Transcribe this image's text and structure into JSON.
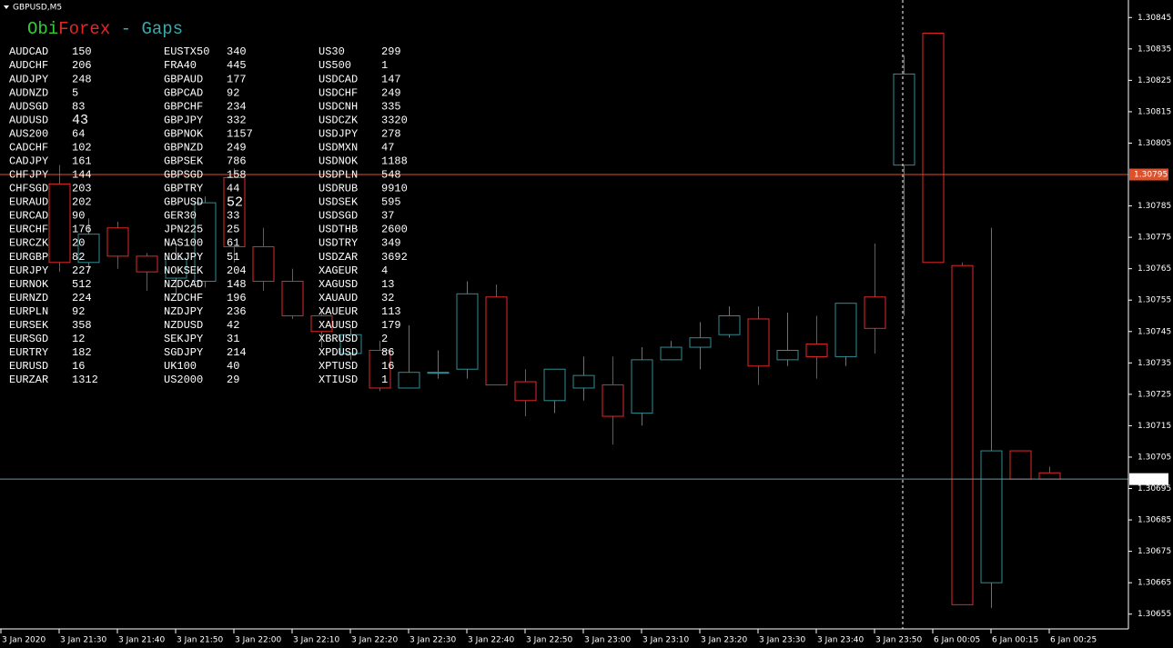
{
  "chart_data": {
    "type": "candlestick",
    "title": "GBPUSD,M5",
    "categories": [
      "3 Jan 2020",
      null,
      "3 Jan 21:30",
      null,
      "3 Jan 21:40",
      null,
      "3 Jan 21:50",
      null,
      "3 Jan 22:00",
      null,
      "3 Jan 22:10",
      null,
      "3 Jan 22:20",
      null,
      "3 Jan 22:30",
      null,
      "3 Jan 22:40",
      null,
      "3 Jan 22:50",
      null,
      "3 Jan 23:00",
      null,
      "3 Jan 23:10",
      null,
      "3 Jan 23:20",
      null,
      "3 Jan 23:30",
      null,
      "3 Jan 23:40",
      null,
      "3 Jan 23:50",
      null,
      "6 Jan 00:05",
      null,
      "6 Jan 00:15",
      null,
      "6 Jan 00:25"
    ],
    "open": [
      null,
      null,
      1.30792,
      1.30767,
      1.30778,
      1.30769,
      1.30762,
      1.30761,
      1.30794,
      1.30772,
      1.30761,
      1.3075,
      1.30738,
      1.30739,
      1.30727,
      1.30732,
      1.30733,
      1.30756,
      1.30729,
      1.30723,
      1.30727,
      1.30728,
      1.30719,
      1.30736,
      1.3074,
      1.30744,
      1.30749,
      1.30736,
      1.30741,
      1.30737,
      1.30756,
      1.30798,
      1.3084,
      1.30766,
      1.30665,
      1.30707,
      1.307
    ],
    "high": [
      null,
      null,
      1.30798,
      1.30781,
      1.3078,
      1.3077,
      1.30772,
      1.30788,
      1.30797,
      1.30778,
      1.30765,
      1.30752,
      1.30746,
      1.30742,
      1.30747,
      1.30739,
      1.30761,
      1.3076,
      1.30733,
      1.30733,
      1.30737,
      1.30737,
      1.3074,
      1.30742,
      1.30748,
      1.30753,
      1.30753,
      1.30751,
      1.3075,
      1.30754,
      1.30773,
      1.30833,
      1.3084,
      1.30767,
      1.30778,
      1.30707,
      1.30702
    ],
    "low": [
      null,
      null,
      1.30764,
      1.30764,
      1.30765,
      1.30758,
      1.30757,
      1.30759,
      1.30767,
      1.30758,
      1.30749,
      1.3074,
      1.30736,
      1.30726,
      1.30727,
      1.3073,
      1.3073,
      1.30728,
      1.30718,
      1.30719,
      1.30723,
      1.30709,
      1.30715,
      1.30736,
      1.30733,
      1.30743,
      1.30728,
      1.30734,
      1.3073,
      1.30734,
      1.30738,
      1.3075,
      1.30767,
      1.30658,
      1.30657,
      1.30698,
      1.30698
    ],
    "close": [
      null,
      null,
      1.30767,
      1.30776,
      1.30769,
      1.30764,
      1.30768,
      1.30786,
      1.30772,
      1.30761,
      1.3075,
      1.30745,
      1.30744,
      1.30727,
      1.30732,
      1.30732,
      1.30757,
      1.30728,
      1.30723,
      1.30733,
      1.30731,
      1.30718,
      1.30736,
      1.3074,
      1.30743,
      1.3075,
      1.30734,
      1.30739,
      1.30737,
      1.30754,
      1.30746,
      1.30827,
      1.30767,
      1.30658,
      1.30707,
      1.30698,
      1.30698
    ],
    "up_color": "#2f8c94",
    "down_color": "#e02828",
    "ylim": [
      1.3065,
      1.3085
    ],
    "yticks": [
      1.30845,
      1.30835,
      1.30825,
      1.30815,
      1.30805,
      1.30785,
      1.30775,
      1.30765,
      1.30755,
      1.30745,
      1.30735,
      1.30725,
      1.30715,
      1.30705,
      1.30695,
      1.30685,
      1.30675,
      1.30665,
      1.30655
    ],
    "price_lines": [
      {
        "value": 1.30795,
        "color": "#e0502a",
        "label_bg": "#e0502a"
      },
      {
        "value": 1.30698,
        "color": "#6d95a0",
        "label_bg": "#ffffff"
      }
    ]
  },
  "overlay": {
    "title_parts": [
      {
        "text": "Obi",
        "color": "#32cd32"
      },
      {
        "text": "Forex",
        "color": "#e02828"
      },
      {
        "text": " - Gaps",
        "color": "#3aa9a9"
      }
    ],
    "columns": [
      [
        {
          "symbol": "AUDCAD",
          "gap": "150",
          "color": "#e02828"
        },
        {
          "symbol": "AUDCHF",
          "gap": "206",
          "color": "#e02828"
        },
        {
          "symbol": "AUDJPY",
          "gap": "248",
          "color": "#e02828"
        },
        {
          "symbol": "AUDNZD",
          "gap": "5",
          "color": "#e02828"
        },
        {
          "symbol": "AUDSGD",
          "gap": "83",
          "color": "#e02828"
        },
        {
          "symbol": "AUDUSD",
          "gap": "43",
          "color": "#ffffff",
          "large": true
        },
        {
          "symbol": "AUS200",
          "gap": "64",
          "color": "#2e8b2e"
        },
        {
          "symbol": "CADCHF",
          "gap": "102",
          "color": "#e02828"
        },
        {
          "symbol": "CADJPY",
          "gap": "161",
          "color": "#e02828"
        },
        {
          "symbol": "CHFJPY",
          "gap": "144",
          "color": "#e02828"
        },
        {
          "symbol": "CHFSGD",
          "gap": "203",
          "color": "#2e8b2e"
        },
        {
          "symbol": "EURAUD",
          "gap": "202",
          "color": "#2e8b2e"
        },
        {
          "symbol": "EURCAD",
          "gap": "90",
          "color": "#e02828"
        },
        {
          "symbol": "EURCHF",
          "gap": "176",
          "color": "#e02828"
        },
        {
          "symbol": "EURCZK",
          "gap": "20",
          "color": "#2e8b2e"
        },
        {
          "symbol": "EURGBP",
          "gap": "82",
          "color": "#e02828"
        },
        {
          "symbol": "EURJPY",
          "gap": "227",
          "color": "#e02828"
        },
        {
          "symbol": "EURNOK",
          "gap": "512",
          "color": "#e02828"
        },
        {
          "symbol": "EURNZD",
          "gap": "224",
          "color": "#2e8b2e"
        },
        {
          "symbol": "EURPLN",
          "gap": "92",
          "color": "#e02828"
        },
        {
          "symbol": "EURSEK",
          "gap": "358",
          "color": "#2e8b2e"
        },
        {
          "symbol": "EURSGD",
          "gap": "12",
          "color": "#2e8b2e"
        },
        {
          "symbol": "EURTRY",
          "gap": "182",
          "color": "#e02828"
        },
        {
          "symbol": "EURUSD",
          "gap": "16",
          "color": "#2e8b2e"
        },
        {
          "symbol": "EURZAR",
          "gap": "1312",
          "color": "#e02828"
        }
      ],
      [
        {
          "symbol": "EUSTX50",
          "gap": "340",
          "color": "#e02828"
        },
        {
          "symbol": "FRA40",
          "gap": "445",
          "color": "#e02828"
        },
        {
          "symbol": "GBPAUD",
          "gap": "177",
          "color": "#2e8b2e"
        },
        {
          "symbol": "GBPCAD",
          "gap": "92",
          "color": "#e02828"
        },
        {
          "symbol": "GBPCHF",
          "gap": "234",
          "color": "#e02828"
        },
        {
          "symbol": "GBPJPY",
          "gap": "332",
          "color": "#e02828"
        },
        {
          "symbol": "GBPNOK",
          "gap": "1157",
          "color": "#e02828"
        },
        {
          "symbol": "GBPNZD",
          "gap": "249",
          "color": "#2e8b2e"
        },
        {
          "symbol": "GBPSEK",
          "gap": "786",
          "color": "#e02828"
        },
        {
          "symbol": "GBPSGD",
          "gap": "158",
          "color": "#2e8b2e"
        },
        {
          "symbol": "GBPTRY",
          "gap": "44",
          "color": "#e02828"
        },
        {
          "symbol": "GBPUSD",
          "gap": "52",
          "color": "#32cd32",
          "large": true
        },
        {
          "symbol": "GER30",
          "gap": "33",
          "color": "#2e8b2e"
        },
        {
          "symbol": "JPN225",
          "gap": "25",
          "color": "#e02828"
        },
        {
          "symbol": "NAS100",
          "gap": "61",
          "color": "#e02828"
        },
        {
          "symbol": "NOKJPY",
          "gap": "51",
          "color": "#e02828"
        },
        {
          "symbol": "NOKSEK",
          "gap": "204",
          "color": "#e02828"
        },
        {
          "symbol": "NZDCAD",
          "gap": "148",
          "color": "#e02828"
        },
        {
          "symbol": "NZDCHF",
          "gap": "196",
          "color": "#e02828"
        },
        {
          "symbol": "NZDJPY",
          "gap": "236",
          "color": "#e02828"
        },
        {
          "symbol": "NZDUSD",
          "gap": "42",
          "color": "#e02828"
        },
        {
          "symbol": "SEKJPY",
          "gap": "31",
          "color": "#e02828"
        },
        {
          "symbol": "SGDJPY",
          "gap": "214",
          "color": "#e02828"
        },
        {
          "symbol": "UK100",
          "gap": "40",
          "color": "#e02828"
        },
        {
          "symbol": "US2000",
          "gap": "29",
          "color": "#e02828"
        }
      ],
      [
        {
          "symbol": "US30",
          "gap": "299",
          "color": "#e02828"
        },
        {
          "symbol": "US500",
          "gap": "1",
          "color": "#e02828"
        },
        {
          "symbol": "USDCAD",
          "gap": "147",
          "color": "#e02828"
        },
        {
          "symbol": "USDCHF",
          "gap": "249",
          "color": "#e02828"
        },
        {
          "symbol": "USDCNH",
          "gap": "335",
          "color": "#e02828"
        },
        {
          "symbol": "USDCZK",
          "gap": "3320",
          "color": "#e02828"
        },
        {
          "symbol": "USDJPY",
          "gap": "278",
          "color": "#e02828"
        },
        {
          "symbol": "USDMXN",
          "gap": "47",
          "color": "#e02828"
        },
        {
          "symbol": "USDNOK",
          "gap": "1188",
          "color": "#e02828"
        },
        {
          "symbol": "USDPLN",
          "gap": "548",
          "color": "#e02828"
        },
        {
          "symbol": "USDRUB",
          "gap": "9910",
          "color": "#e02828"
        },
        {
          "symbol": "USDSEK",
          "gap": "595",
          "color": "#e02828"
        },
        {
          "symbol": "USDSGD",
          "gap": "37",
          "color": "#e02828"
        },
        {
          "symbol": "USDTHB",
          "gap": "2600",
          "color": "#e02828"
        },
        {
          "symbol": "USDTRY",
          "gap": "349",
          "color": "#e02828"
        },
        {
          "symbol": "USDZAR",
          "gap": "3692",
          "color": "#e02828"
        },
        {
          "symbol": "XAGEUR",
          "gap": "4",
          "color": "#e02828"
        },
        {
          "symbol": "XAGUSD",
          "gap": "13",
          "color": "#e02828"
        },
        {
          "symbol": "XAUAUD",
          "gap": "32",
          "color": "#2e8b2e"
        },
        {
          "symbol": "XAUEUR",
          "gap": "113",
          "color": "#e02828"
        },
        {
          "symbol": "XAUUSD",
          "gap": "179",
          "color": "#e02828"
        },
        {
          "symbol": "XBRUSD",
          "gap": "2",
          "color": "#e02828"
        },
        {
          "symbol": "XPDUSD",
          "gap": "86",
          "color": "#e02828"
        },
        {
          "symbol": "XPTUSD",
          "gap": "16",
          "color": "#2e8b2e"
        },
        {
          "symbol": "XTIUSD",
          "gap": "1",
          "color": "#2e8b2e"
        }
      ]
    ]
  }
}
